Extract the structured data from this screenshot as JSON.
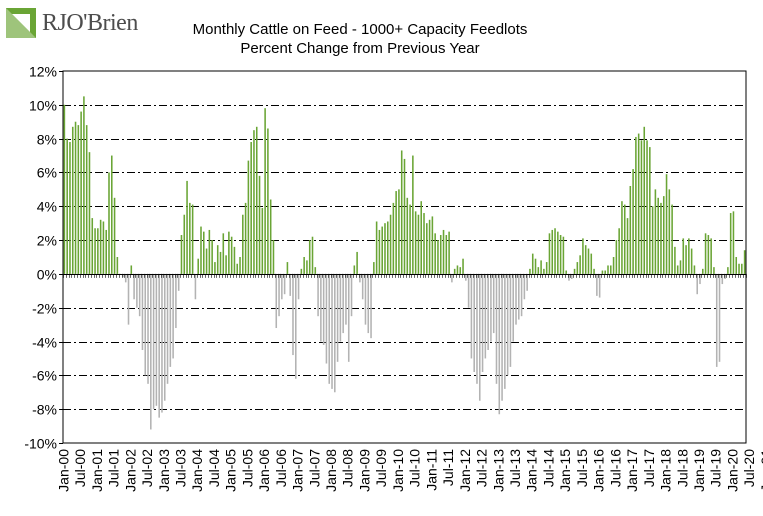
{
  "logo": {
    "text": "RJO'Brien",
    "color": "#6aa535"
  },
  "chart_data": {
    "type": "bar",
    "title": "Monthly Cattle on Feed - 1000+ Capacity Feedlots",
    "subtitle": "Percent Change from Previous Year",
    "xlabel": "",
    "ylabel": "",
    "ylim": [
      -10,
      12
    ],
    "yticks": [
      -10,
      -8,
      -6,
      -4,
      -2,
      0,
      2,
      4,
      6,
      8,
      10,
      12
    ],
    "ytick_labels": [
      "-10%",
      "-8%",
      "-6%",
      "-4%",
      "-2%",
      "0%",
      "2%",
      "4%",
      "6%",
      "8%",
      "10%",
      "12%"
    ],
    "grid": true,
    "legend": "none",
    "colors": {
      "positive": "#6aa535",
      "negative": "#b3b3b3"
    },
    "xtick_labels": [
      "Jan-00",
      "Jul-00",
      "Jan-01",
      "Jul-01",
      "Jan-02",
      "Jul-02",
      "Jan-03",
      "Jul-03",
      "Jan-04",
      "Jul-04",
      "Jan-05",
      "Jul-05",
      "Jan-06",
      "Jul-06",
      "Jan-07",
      "Jul-07",
      "Jan-08",
      "Jul-08",
      "Jan-09",
      "Jul-09",
      "Jan-10",
      "Jul-10",
      "Jan-11",
      "Jul-11",
      "Jan-12",
      "Jul-12",
      "Jan-13",
      "Jul-13",
      "Jan-14",
      "Jul-14",
      "Jan-15",
      "Jul-15",
      "Jan-16",
      "Jul-16",
      "Jan-17",
      "Jul-17",
      "Jan-18",
      "Jul-18",
      "Jan-19",
      "Jul-19",
      "Jan-20",
      "Jul-20",
      "Jan-21"
    ],
    "start_month": "Jan-00",
    "values": [
      10.0,
      8.0,
      7.8,
      8.7,
      9.0,
      8.8,
      9.6,
      10.5,
      8.8,
      7.2,
      3.3,
      2.7,
      2.7,
      3.2,
      3.1,
      2.6,
      6.0,
      7.0,
      4.5,
      1.0,
      0.0,
      -0.2,
      -0.5,
      -3.0,
      0.5,
      -1.5,
      -2.0,
      -2.5,
      -4.5,
      -6.0,
      -6.5,
      -9.2,
      -8.0,
      -7.8,
      -8.5,
      -8.2,
      -7.5,
      -6.5,
      -5.5,
      -5.0,
      -3.2,
      -1.0,
      2.3,
      3.5,
      5.5,
      4.2,
      4.1,
      -1.5,
      0.9,
      2.8,
      2.5,
      1.5,
      2.6,
      2.0,
      0.7,
      1.7,
      1.3,
      2.4,
      1.1,
      2.5,
      2.2,
      1.6,
      0.6,
      1.0,
      3.5,
      4.2,
      6.7,
      7.8,
      8.5,
      8.7,
      5.8,
      3.9,
      9.8,
      8.6,
      4.4,
      2.0,
      -3.2,
      -2.5,
      -1.5,
      -1.2,
      0.7,
      -1.3,
      -4.8,
      -6.2,
      -1.5,
      0.3,
      1.0,
      0.8,
      2.0,
      2.2,
      0.4,
      -2.5,
      -4.0,
      -4.2,
      -5.3,
      -6.5,
      -6.8,
      -7.0,
      -5.2,
      -4.0,
      -3.5,
      -3.0,
      -5.2,
      -2.5,
      0.5,
      1.3,
      -0.5,
      -1.5,
      -3.0,
      -3.5,
      -3.8,
      0.7,
      3.1,
      2.6,
      2.8,
      3.0,
      3.1,
      3.5,
      4.2,
      4.9,
      5.0,
      7.3,
      6.8,
      4.5,
      4.1,
      7.0,
      3.7,
      3.5,
      4.3,
      3.6,
      3.0,
      3.2,
      3.4,
      2.4,
      2.0,
      2.3,
      2.6,
      2.3,
      2.5,
      -0.5,
      0.3,
      0.5,
      0.4,
      0.9,
      -0.4,
      -2.0,
      -5.0,
      -5.8,
      -6.5,
      -7.5,
      -5.8,
      -5.0,
      -4.5,
      -4.0,
      -3.5,
      -6.5,
      -8.3,
      -7.5,
      -6.8,
      -6.0,
      -5.5,
      -4.0,
      -3.0,
      -2.7,
      -2.5,
      -1.5,
      -1.0,
      0.3,
      1.2,
      0.9,
      0.4,
      0.8,
      0.3,
      0.7,
      2.4,
      2.6,
      2.7,
      2.5,
      2.3,
      2.2,
      0.2,
      -0.4,
      -0.3,
      0.3,
      0.7,
      1.1,
      2.1,
      1.7,
      1.5,
      1.2,
      0.3,
      -1.3,
      -1.4,
      0.2,
      0.2,
      0.5,
      0.5,
      1.0,
      2.0,
      2.7,
      4.3,
      4.1,
      3.3,
      5.2,
      6.2,
      8.1,
      8.3,
      7.9,
      8.7,
      7.9,
      7.5,
      4.0,
      5.0,
      4.5,
      4.2,
      4.6,
      5.9,
      5.0,
      4.1,
      1.6,
      0.5,
      0.8,
      2.1,
      1.7,
      2.1,
      1.5,
      0.5,
      -1.2,
      -0.6,
      0.3,
      2.4,
      2.3,
      2.1,
      0.4,
      -5.5,
      -5.2,
      -0.6,
      -0.3,
      0.4,
      3.6,
      3.7,
      1.0,
      0.6,
      0.6,
      1.4
    ]
  }
}
